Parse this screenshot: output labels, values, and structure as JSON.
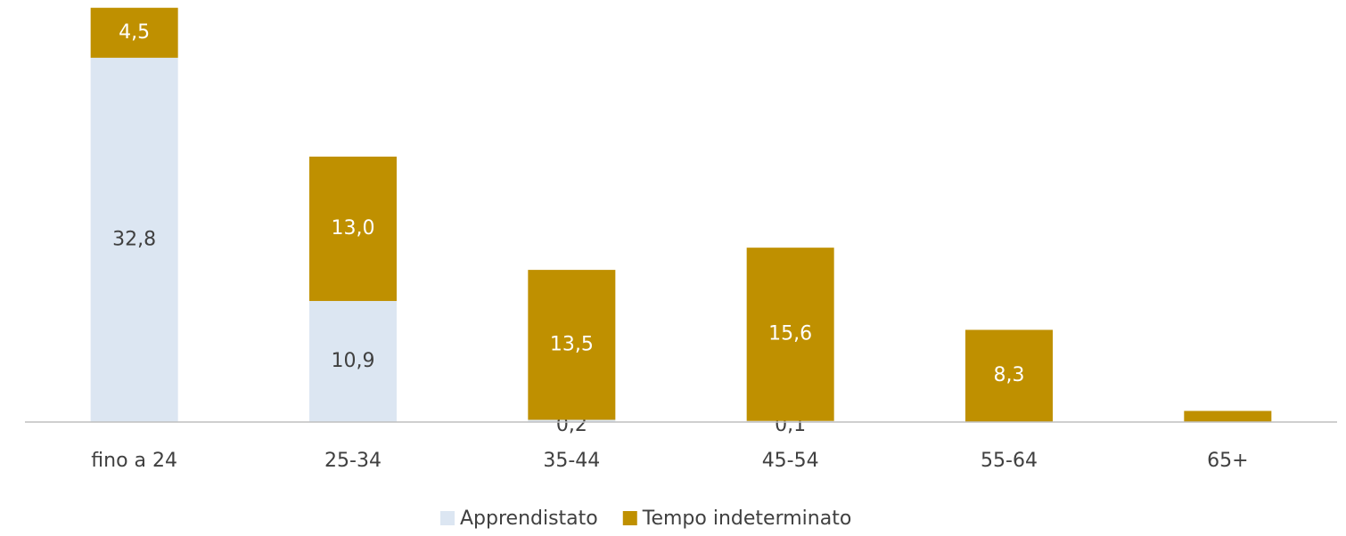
{
  "chart_data": {
    "type": "stacked_bar",
    "categories": [
      "fino a 24",
      "25-34",
      "35-44",
      "45-54",
      "55-64",
      "65+"
    ],
    "series": [
      {
        "name": "Apprendistato",
        "color": "#dce6f2",
        "label_color": "#404040",
        "values": [
          32.8,
          10.9,
          0.2,
          0.1,
          null,
          null
        ],
        "value_labels": [
          "32,8",
          "10,9",
          "0,2",
          "0,1",
          null,
          null
        ]
      },
      {
        "name": "Tempo indeterminato",
        "color": "#bf9000",
        "label_color": "#ffffff",
        "values": [
          4.5,
          13.0,
          13.5,
          15.6,
          8.3,
          1.0
        ],
        "value_labels": [
          "4,5",
          "13,0",
          "13,5",
          "15,6",
          "8,3",
          null
        ]
      }
    ],
    "ylim": [
      0,
      38
    ]
  }
}
